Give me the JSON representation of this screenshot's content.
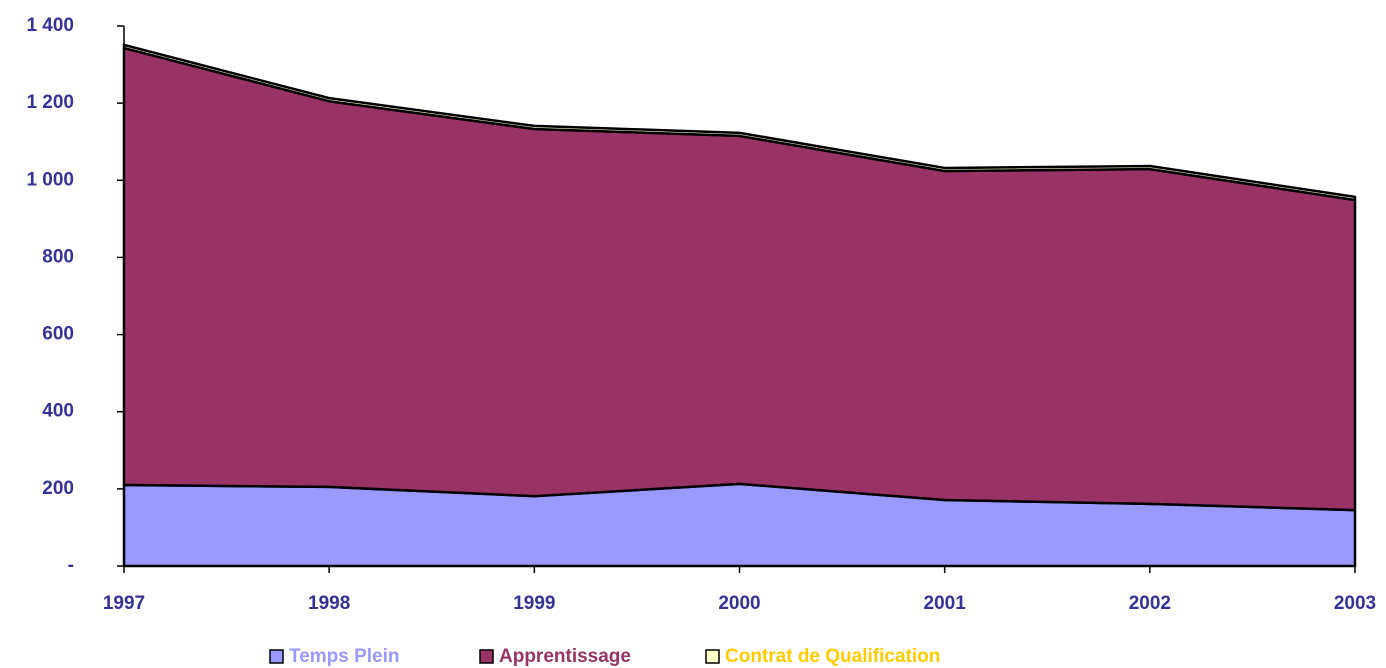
{
  "chart_data": {
    "type": "stacked_area",
    "categories": [
      "1997",
      "1998",
      "1999",
      "2000",
      "2001",
      "2002",
      "2003"
    ],
    "series": [
      {
        "name": "Temps Plein",
        "color": "#9999ff",
        "label_color": "#9999ff",
        "values": [
          210,
          205,
          181,
          213,
          171,
          161,
          145
        ]
      },
      {
        "name": "Apprentissage",
        "color": "#993366",
        "label_color": "#993366",
        "values": [
          1133,
          1000,
          952,
          902,
          853,
          868,
          804
        ]
      },
      {
        "name": "Contrat de Qualification",
        "color": "#ffffcc",
        "label_color": "#ffcc00",
        "values": [
          8,
          8,
          8,
          8,
          8,
          8,
          8
        ]
      }
    ],
    "ylim": [
      0,
      1400
    ],
    "yticks": [
      {
        "value": 0,
        "label": "-"
      },
      200,
      400,
      600,
      800,
      {
        "value": 1000,
        "label": "1 000"
      },
      {
        "value": 1200,
        "label": "1 200"
      },
      {
        "value": 1400,
        "label": "1 400"
      }
    ],
    "legend": "bottom"
  }
}
